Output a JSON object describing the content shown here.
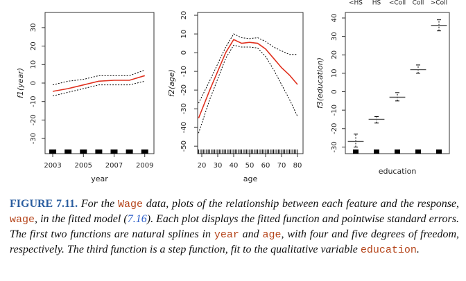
{
  "chart_data": [
    {
      "type": "line",
      "xlabel": "year",
      "ylabel": "f1(year)",
      "x": [
        2003,
        2004,
        2005,
        2006,
        2007,
        2008,
        2009
      ],
      "series": [
        {
          "color": "#e0301e",
          "dash": false,
          "values": [
            -4.5,
            -3,
            -1,
            1,
            1.5,
            1.5,
            4
          ]
        },
        {
          "color": "#000000",
          "dash": true,
          "values": [
            -1,
            1,
            2,
            4,
            4,
            4,
            7
          ]
        },
        {
          "color": "#000000",
          "dash": true,
          "values": [
            -7,
            -5,
            -3,
            -1,
            -1,
            -1,
            1
          ]
        }
      ],
      "rug": [
        2003,
        2004,
        2005,
        2006,
        2007,
        2008,
        2009
      ],
      "xlim": [
        2002.5,
        2009.6
      ],
      "xticks": [
        2003,
        2005,
        2007,
        2009
      ],
      "ylim": [
        -38.2,
        38.2
      ],
      "yticks": [
        -30,
        -20,
        -10,
        0,
        10,
        20,
        30
      ]
    },
    {
      "type": "line",
      "xlabel": "age",
      "ylabel": "f2(age)",
      "x": [
        18,
        25,
        30,
        35,
        40,
        45,
        50,
        55,
        60,
        65,
        70,
        75,
        80
      ],
      "series": [
        {
          "color": "#e0301e",
          "dash": false,
          "values": [
            -35,
            -20,
            -10,
            0,
            7,
            5,
            5.5,
            5,
            2,
            -3,
            -8,
            -12,
            -17
          ]
        },
        {
          "color": "#000000",
          "dash": true,
          "values": [
            -27,
            -15,
            -6,
            3,
            10,
            8,
            7.5,
            8,
            6,
            3,
            1,
            -1,
            -1
          ]
        },
        {
          "color": "#000000",
          "dash": true,
          "values": [
            -43,
            -25,
            -14,
            -3,
            4,
            3,
            3,
            2.5,
            -2,
            -9,
            -17,
            -25,
            -34
          ]
        }
      ],
      "rug": [
        18,
        19,
        20,
        21,
        22,
        23,
        24,
        25,
        26,
        27,
        28,
        29,
        30,
        31,
        32,
        33,
        34,
        35,
        36,
        37,
        38,
        39,
        40,
        41,
        42,
        43,
        44,
        45,
        46,
        47,
        48,
        49,
        50,
        51,
        52,
        53,
        54,
        55,
        56,
        57,
        58,
        59,
        60,
        61,
        62,
        63,
        64,
        65,
        66,
        67,
        68,
        69,
        70,
        71,
        72,
        73,
        74,
        75,
        76,
        77,
        78,
        79,
        80
      ],
      "xlim": [
        17.4,
        83.5
      ],
      "xticks": [
        20,
        30,
        40,
        50,
        60,
        70,
        80
      ],
      "ylim": [
        -54,
        21.5
      ],
      "yticks": [
        -50,
        -40,
        -30,
        -20,
        -10,
        0,
        10,
        20
      ]
    },
    {
      "type": "step",
      "xlabel": "education",
      "ylabel": "f3(education)",
      "categories": [
        "<HS",
        "HS",
        "<Coll",
        "Coll",
        ">Coll"
      ],
      "series": [
        {
          "color": "#555555",
          "dash": false,
          "values": [
            -27,
            -15,
            -3,
            12,
            36
          ]
        },
        {
          "color": "#000000",
          "dash": true,
          "values": [
            -23,
            -13.5,
            -0.5,
            14.5,
            39
          ]
        },
        {
          "color": "#000000",
          "dash": true,
          "values": [
            -30,
            -17,
            -5,
            10,
            33
          ]
        }
      ],
      "ylim": [
        -33.6,
        43
      ],
      "yticks": [
        -30,
        -20,
        -10,
        0,
        10,
        20,
        30,
        40
      ]
    }
  ],
  "caption": {
    "label": "FIGURE 7.11.",
    "parts": [
      "For the ",
      "Wage",
      " data, plots of the relationship between each feature and the response, ",
      "wage",
      ", in the fitted model (",
      "7.16",
      "). Each plot displays the fitted function and pointwise standard errors. The first two functions are natural splines in ",
      "year",
      " and ",
      "age",
      ", with four and five degrees of freedom, respectively. The third function is a step function, fit to the qualitative variable ",
      "education",
      "."
    ]
  }
}
